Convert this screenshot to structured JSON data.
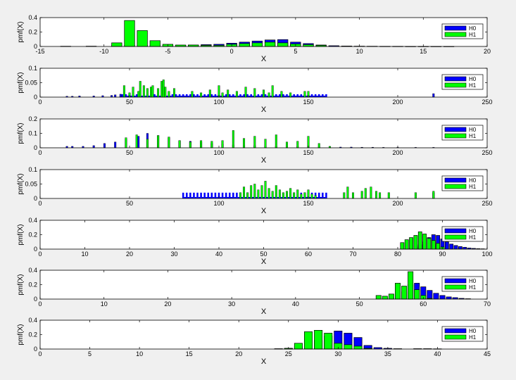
{
  "figure": {
    "background": "#f0f0f0"
  },
  "colors": {
    "H0": "#0000ff",
    "H1": "#00ff00",
    "edge": "#000000"
  },
  "chart_data": [
    {
      "type": "bar",
      "xlabel": "X",
      "ylabel": "pmf(X)",
      "xlim": [
        -15,
        20
      ],
      "ylim": [
        0,
        0.4
      ],
      "xticks": [
        -15,
        -10,
        -5,
        0,
        5,
        10,
        15,
        20
      ],
      "yticks": [
        0,
        0.2,
        0.4
      ],
      "legend": {
        "entries": [
          "H0",
          "H1"
        ],
        "placement": "right"
      },
      "bar_width": 0.8,
      "series": [
        {
          "name": "H0",
          "x": [
            -13,
            -11,
            -9,
            -8,
            -7,
            -6,
            -5,
            -4,
            -3,
            -2,
            -1,
            0,
            1,
            2,
            3,
            4,
            5,
            6,
            7,
            8,
            9,
            10,
            11,
            12,
            13,
            14,
            15,
            16,
            17
          ],
          "values": [
            0.003,
            0.004,
            0.01,
            0.015,
            0.012,
            0.01,
            0.012,
            0.015,
            0.02,
            0.025,
            0.03,
            0.045,
            0.06,
            0.075,
            0.09,
            0.095,
            0.06,
            0.04,
            0.02,
            0.01,
            0.006,
            0.004,
            0.003,
            0.002,
            0.002,
            0.001,
            0.001,
            0.001,
            0.001
          ]
        },
        {
          "name": "H1",
          "x": [
            -9,
            -8,
            -7,
            -6,
            -5,
            -4,
            -3,
            -2,
            -1,
            0,
            1,
            2,
            3,
            4,
            5,
            6,
            7
          ],
          "values": [
            0.05,
            0.36,
            0.22,
            0.08,
            0.03,
            0.02,
            0.02,
            0.015,
            0.015,
            0.03,
            0.04,
            0.05,
            0.06,
            0.05,
            0.035,
            0.025,
            0.015
          ]
        }
      ]
    },
    {
      "type": "bar",
      "xlabel": "X",
      "ylabel": "pmf(X)",
      "xlim": [
        0,
        250
      ],
      "ylim": [
        0,
        0.1
      ],
      "xticks": [
        0,
        50,
        100,
        150,
        200,
        250
      ],
      "yticks": [
        0,
        0.05,
        0.1
      ],
      "legend": {
        "entries": [
          "H0",
          "H1"
        ],
        "placement": "right"
      },
      "bar_width": 1,
      "series": [
        {
          "name": "H0",
          "x": [
            15,
            18,
            22,
            30,
            35,
            40,
            42,
            45,
            220
          ],
          "values": [
            0.003,
            0.003,
            0.004,
            0.004,
            0.005,
            0.006,
            0.008,
            0.01,
            0.012
          ],
          "band": {
            "x_start": 45,
            "x_end": 160,
            "values": [
              0.01,
              0.005
            ]
          }
        },
        {
          "name": "H1",
          "x": [
            47,
            50,
            52,
            55,
            56,
            58,
            60,
            62,
            63,
            66,
            68,
            69,
            70,
            72,
            75,
            85,
            90,
            95,
            100,
            102,
            105,
            110,
            115,
            120,
            125,
            128,
            130,
            135,
            140,
            148,
            150
          ],
          "values": [
            0.04,
            0.015,
            0.035,
            0.02,
            0.055,
            0.04,
            0.03,
            0.035,
            0.04,
            0.03,
            0.055,
            0.06,
            0.035,
            0.02,
            0.03,
            0.02,
            0.015,
            0.025,
            0.04,
            0.015,
            0.025,
            0.02,
            0.035,
            0.03,
            0.025,
            0.015,
            0.04,
            0.02,
            0.015,
            0.02,
            0.02
          ]
        }
      ]
    },
    {
      "type": "bar",
      "xlabel": "X",
      "ylabel": "pmf(X)",
      "xlim": [
        0,
        250
      ],
      "ylim": [
        0,
        0.2
      ],
      "xticks": [
        0,
        50,
        100,
        150,
        200,
        250
      ],
      "yticks": [
        0,
        0.1,
        0.2
      ],
      "legend": {
        "entries": [
          "H0",
          "H1"
        ],
        "placement": "right"
      },
      "bar_width": 1,
      "series": [
        {
          "name": "H0",
          "x": [
            15,
            18,
            24,
            30,
            36,
            42,
            48,
            55,
            60,
            66,
            72,
            78,
            84,
            90,
            96,
            102,
            108,
            114,
            120,
            126,
            132,
            138,
            144,
            150,
            156,
            162,
            168,
            174,
            180,
            186,
            192,
            200,
            210,
            220
          ],
          "values": [
            0.01,
            0.01,
            0.01,
            0.015,
            0.03,
            0.04,
            0.06,
            0.08,
            0.1,
            0.085,
            0.07,
            0.05,
            0.045,
            0.04,
            0.03,
            0.025,
            0.02,
            0.015,
            0.015,
            0.012,
            0.01,
            0.01,
            0.008,
            0.008,
            0.006,
            0.006,
            0.005,
            0.005,
            0.004,
            0.004,
            0.003,
            0.003,
            0.003,
            0.003
          ]
        },
        {
          "name": "H1",
          "x": [
            48,
            54,
            60,
            66,
            72,
            78,
            84,
            90,
            96,
            102,
            108,
            114,
            120,
            126,
            132,
            138,
            144,
            150,
            156,
            162
          ],
          "values": [
            0.07,
            0.09,
            0.06,
            0.085,
            0.075,
            0.05,
            0.04,
            0.05,
            0.045,
            0.05,
            0.12,
            0.065,
            0.08,
            0.06,
            0.09,
            0.04,
            0.045,
            0.08,
            0.03,
            0.01
          ]
        }
      ]
    },
    {
      "type": "bar",
      "xlabel": "X",
      "ylabel": "pmf(X)",
      "xlim": [
        0,
        250
      ],
      "ylim": [
        0,
        0.1
      ],
      "xticks": [
        0,
        50,
        100,
        150,
        200,
        250
      ],
      "yticks": [
        0,
        0.05,
        0.1
      ],
      "legend": {
        "entries": [
          "H0",
          "H1"
        ],
        "placement": "right"
      },
      "bar_width": 1,
      "series": [
        {
          "name": "H0",
          "x": [
            220
          ],
          "values": [
            0.02
          ],
          "band": {
            "x_start": 80,
            "x_end": 160,
            "values": [
              0.02,
              0.005
            ]
          }
        },
        {
          "name": "H1",
          "x": [
            112,
            114,
            116,
            118,
            120,
            122,
            124,
            126,
            128,
            130,
            132,
            134,
            136,
            138,
            140,
            142,
            144,
            146,
            148,
            150,
            152,
            154,
            170,
            172,
            175,
            180,
            182,
            185,
            188,
            190,
            195,
            210,
            220
          ],
          "values": [
            0.02,
            0.04,
            0.02,
            0.045,
            0.05,
            0.03,
            0.045,
            0.06,
            0.035,
            0.025,
            0.045,
            0.03,
            0.02,
            0.025,
            0.035,
            0.02,
            0.03,
            0.015,
            0.02,
            0.03,
            0.015,
            0.01,
            0.02,
            0.04,
            0.02,
            0.025,
            0.035,
            0.04,
            0.025,
            0.02,
            0.02,
            0.02,
            0.025
          ]
        }
      ]
    },
    {
      "type": "bar",
      "xlabel": "X",
      "ylabel": "pmf(X)",
      "xlim": [
        0,
        100
      ],
      "ylim": [
        0,
        0.4
      ],
      "xticks": [
        0,
        10,
        20,
        30,
        40,
        50,
        60,
        70,
        80,
        90,
        100
      ],
      "yticks": [
        0,
        0.2,
        0.4
      ],
      "legend": {
        "entries": [
          "H0",
          "H1"
        ],
        "placement": "right"
      },
      "bar_width": 0.8,
      "series": [
        {
          "name": "H0",
          "x": [
            82,
            83,
            84,
            85,
            86,
            87,
            88,
            89,
            90,
            91,
            92,
            93,
            94,
            95,
            96,
            97,
            98,
            99
          ],
          "values": [
            0.005,
            0.01,
            0.03,
            0.06,
            0.1,
            0.16,
            0.2,
            0.19,
            0.14,
            0.1,
            0.07,
            0.05,
            0.035,
            0.025,
            0.015,
            0.01,
            0.006,
            0.004
          ]
        },
        {
          "name": "H1",
          "x": [
            81,
            82,
            83,
            84,
            85,
            86,
            87,
            88,
            89,
            90
          ],
          "values": [
            0.09,
            0.13,
            0.16,
            0.19,
            0.24,
            0.21,
            0.15,
            0.12,
            0.08,
            0.03
          ]
        }
      ]
    },
    {
      "type": "bar",
      "xlabel": "X",
      "ylabel": "pmf(X)",
      "xlim": [
        0,
        70
      ],
      "ylim": [
        0,
        0.4
      ],
      "xticks": [
        0,
        10,
        20,
        30,
        40,
        50,
        60,
        70
      ],
      "yticks": [
        0,
        0.2,
        0.4
      ],
      "legend": {
        "entries": [
          "H0",
          "H1"
        ],
        "placement": "right"
      },
      "bar_width": 0.8,
      "series": [
        {
          "name": "H0",
          "x": [
            54,
            55,
            56,
            57,
            58,
            59,
            60,
            61,
            62,
            63,
            64,
            65,
            66,
            67
          ],
          "values": [
            0.01,
            0.02,
            0.05,
            0.1,
            0.2,
            0.22,
            0.17,
            0.12,
            0.08,
            0.05,
            0.03,
            0.02,
            0.01,
            0.005
          ]
        },
        {
          "name": "H1",
          "x": [
            53,
            54,
            55,
            56,
            57,
            58,
            59,
            60,
            61
          ],
          "values": [
            0.05,
            0.04,
            0.07,
            0.22,
            0.18,
            0.38,
            0.13,
            0.05,
            0.01
          ]
        }
      ]
    },
    {
      "type": "bar",
      "xlabel": "X",
      "ylabel": "pmf(X)",
      "xlim": [
        0,
        45
      ],
      "ylim": [
        0,
        0.4
      ],
      "xticks": [
        0,
        5,
        10,
        15,
        20,
        25,
        30,
        35,
        40,
        45
      ],
      "yticks": [
        0,
        0.2,
        0.4
      ],
      "legend": {
        "entries": [
          "H0",
          "H1"
        ],
        "placement": "right"
      },
      "bar_width": 0.8,
      "series": [
        {
          "name": "H0",
          "x": [
            24,
            25,
            26,
            27,
            28,
            29,
            30,
            31,
            32,
            33,
            34,
            35,
            36,
            38,
            39,
            40
          ],
          "values": [
            0.005,
            0.01,
            0.03,
            0.07,
            0.12,
            0.18,
            0.25,
            0.22,
            0.16,
            0.05,
            0.02,
            0.01,
            0.005,
            0.005,
            0.005,
            0.003
          ]
        },
        {
          "name": "H1",
          "x": [
            25,
            26,
            27,
            28,
            29,
            30,
            31,
            32,
            33
          ],
          "values": [
            0.01,
            0.08,
            0.24,
            0.26,
            0.22,
            0.08,
            0.06,
            0.04,
            0.01
          ]
        }
      ]
    }
  ]
}
